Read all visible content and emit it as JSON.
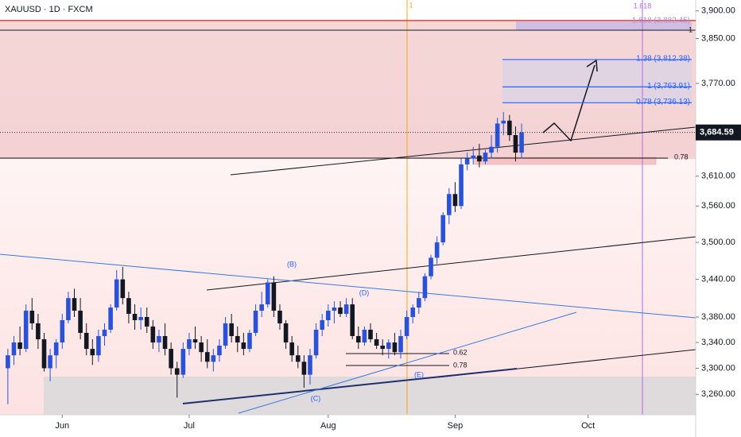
{
  "chart_data": {
    "type": "candlestick",
    "title": "XAUUSD · 1D · FXCM",
    "up_color": "#2a52d9",
    "down_color": "#131722",
    "log_scale": true,
    "ylim": [
      3229,
      3920
    ],
    "yticks": [
      {
        "value": 3900,
        "label": "3,900.00"
      },
      {
        "value": 3850,
        "label": "3,850.00"
      },
      {
        "value": 3770,
        "label": "3,770.00"
      },
      {
        "value": 3610,
        "label": "3,610.00"
      },
      {
        "value": 3560,
        "label": "3,560.00"
      },
      {
        "value": 3500,
        "label": "3,500.00"
      },
      {
        "value": 3440,
        "label": "3,440.00"
      },
      {
        "value": 3380,
        "label": "3,380.00"
      },
      {
        "value": 3340,
        "label": "3,340.00"
      },
      {
        "value": 3300,
        "label": "3,300.00"
      },
      {
        "value": 3260,
        "label": "3,260.00"
      }
    ],
    "xlim": [
      -1.3,
      113.8
    ],
    "xticks": [
      {
        "value": 9,
        "label": "Jun"
      },
      {
        "value": 30,
        "label": "Jul"
      },
      {
        "value": 53,
        "label": "Aug"
      },
      {
        "value": 74,
        "label": "Sep"
      },
      {
        "value": 96,
        "label": "Oct"
      }
    ],
    "last_price": {
      "value": 3684.59,
      "label": "3,684.59"
    },
    "extension_level": {
      "value": 3882.45,
      "label": "1.618 (3,882.45)"
    },
    "fib_levels": [
      {
        "value": 3812.38,
        "label": "1.38 (3,812.38)"
      },
      {
        "value": 3763.91,
        "label": "1 (3,763.91)"
      },
      {
        "value": 3736.13,
        "label": "0.78 (3,736.13)"
      }
    ],
    "annotations": [
      "(B)",
      "(C)",
      "(D)",
      "(E)",
      "0.62",
      "0.78",
      "0.78",
      "1.618",
      "1",
      "1"
    ],
    "ohlc": [
      [
        3300,
        3330,
        3245,
        3320
      ],
      [
        3320,
        3350,
        3305,
        3340
      ],
      [
        3340,
        3365,
        3320,
        3330
      ],
      [
        3330,
        3400,
        3325,
        3390
      ],
      [
        3390,
        3410,
        3360,
        3370
      ],
      [
        3370,
        3385,
        3330,
        3345
      ],
      [
        3345,
        3355,
        3295,
        3300
      ],
      [
        3300,
        3330,
        3280,
        3320
      ],
      [
        3320,
        3345,
        3300,
        3340
      ],
      [
        3340,
        3385,
        3330,
        3375
      ],
      [
        3375,
        3420,
        3370,
        3410
      ],
      [
        3410,
        3425,
        3380,
        3390
      ],
      [
        3390,
        3410,
        3345,
        3355
      ],
      [
        3355,
        3370,
        3320,
        3330
      ],
      [
        3330,
        3345,
        3305,
        3320
      ],
      [
        3320,
        3360,
        3310,
        3350
      ],
      [
        3350,
        3370,
        3335,
        3360
      ],
      [
        3360,
        3400,
        3355,
        3395
      ],
      [
        3395,
        3455,
        3390,
        3440
      ],
      [
        3440,
        3460,
        3400,
        3410
      ],
      [
        3410,
        3420,
        3370,
        3385
      ],
      [
        3385,
        3400,
        3360,
        3375
      ],
      [
        3375,
        3395,
        3360,
        3380
      ],
      [
        3380,
        3395,
        3355,
        3365
      ],
      [
        3365,
        3375,
        3330,
        3340
      ],
      [
        3340,
        3360,
        3325,
        3350
      ],
      [
        3350,
        3370,
        3320,
        3330
      ],
      [
        3330,
        3340,
        3290,
        3300
      ],
      [
        3300,
        3310,
        3255,
        3290
      ],
      [
        3290,
        3340,
        3285,
        3330
      ],
      [
        3330,
        3355,
        3320,
        3345
      ],
      [
        3345,
        3365,
        3330,
        3340
      ],
      [
        3340,
        3350,
        3310,
        3325
      ],
      [
        3325,
        3345,
        3300,
        3310
      ],
      [
        3310,
        3330,
        3295,
        3320
      ],
      [
        3320,
        3345,
        3310,
        3335
      ],
      [
        3335,
        3380,
        3330,
        3370
      ],
      [
        3370,
        3385,
        3340,
        3350
      ],
      [
        3350,
        3365,
        3325,
        3340
      ],
      [
        3340,
        3355,
        3320,
        3330
      ],
      [
        3330,
        3360,
        3325,
        3355
      ],
      [
        3355,
        3400,
        3350,
        3390
      ],
      [
        3390,
        3420,
        3380,
        3400
      ],
      [
        3400,
        3440,
        3395,
        3435
      ],
      [
        3435,
        3445,
        3380,
        3390
      ],
      [
        3390,
        3400,
        3360,
        3370
      ],
      [
        3370,
        3375,
        3330,
        3340
      ],
      [
        3340,
        3350,
        3310,
        3320
      ],
      [
        3320,
        3335,
        3300,
        3310
      ],
      [
        3310,
        3320,
        3270,
        3290
      ],
      [
        3290,
        3330,
        3275,
        3320
      ],
      [
        3320,
        3370,
        3315,
        3360
      ],
      [
        3360,
        3385,
        3350,
        3375
      ],
      [
        3375,
        3400,
        3365,
        3390
      ],
      [
        3390,
        3405,
        3370,
        3395
      ],
      [
        3395,
        3405,
        3380,
        3385
      ],
      [
        3385,
        3410,
        3380,
        3400
      ],
      [
        3400,
        3410,
        3345,
        3350
      ],
      [
        3350,
        3365,
        3330,
        3340
      ],
      [
        3340,
        3365,
        3335,
        3360
      ],
      [
        3360,
        3370,
        3340,
        3345
      ],
      [
        3345,
        3355,
        3330,
        3335
      ],
      [
        3335,
        3345,
        3320,
        3330
      ],
      [
        3330,
        3345,
        3315,
        3340
      ],
      [
        3340,
        3355,
        3320,
        3325
      ],
      [
        3325,
        3360,
        3315,
        3350
      ],
      [
        3350,
        3390,
        3345,
        3380
      ],
      [
        3380,
        3400,
        3370,
        3395
      ],
      [
        3395,
        3420,
        3385,
        3410
      ],
      [
        3410,
        3450,
        3405,
        3445
      ],
      [
        3445,
        3480,
        3440,
        3475
      ],
      [
        3475,
        3510,
        3465,
        3500
      ],
      [
        3500,
        3550,
        3495,
        3545
      ],
      [
        3545,
        3590,
        3530,
        3580
      ],
      [
        3580,
        3600,
        3550,
        3560
      ],
      [
        3560,
        3640,
        3555,
        3630
      ],
      [
        3630,
        3650,
        3620,
        3640
      ],
      [
        3640,
        3660,
        3630,
        3645
      ],
      [
        3645,
        3665,
        3625,
        3635
      ],
      [
        3635,
        3655,
        3630,
        3650
      ],
      [
        3650,
        3680,
        3640,
        3660
      ],
      [
        3660,
        3710,
        3650,
        3700
      ],
      [
        3700,
        3720,
        3680,
        3705
      ],
      [
        3705,
        3715,
        3670,
        3680
      ],
      [
        3680,
        3695,
        3635,
        3650
      ],
      [
        3650,
        3700,
        3640,
        3684.59
      ]
    ]
  }
}
